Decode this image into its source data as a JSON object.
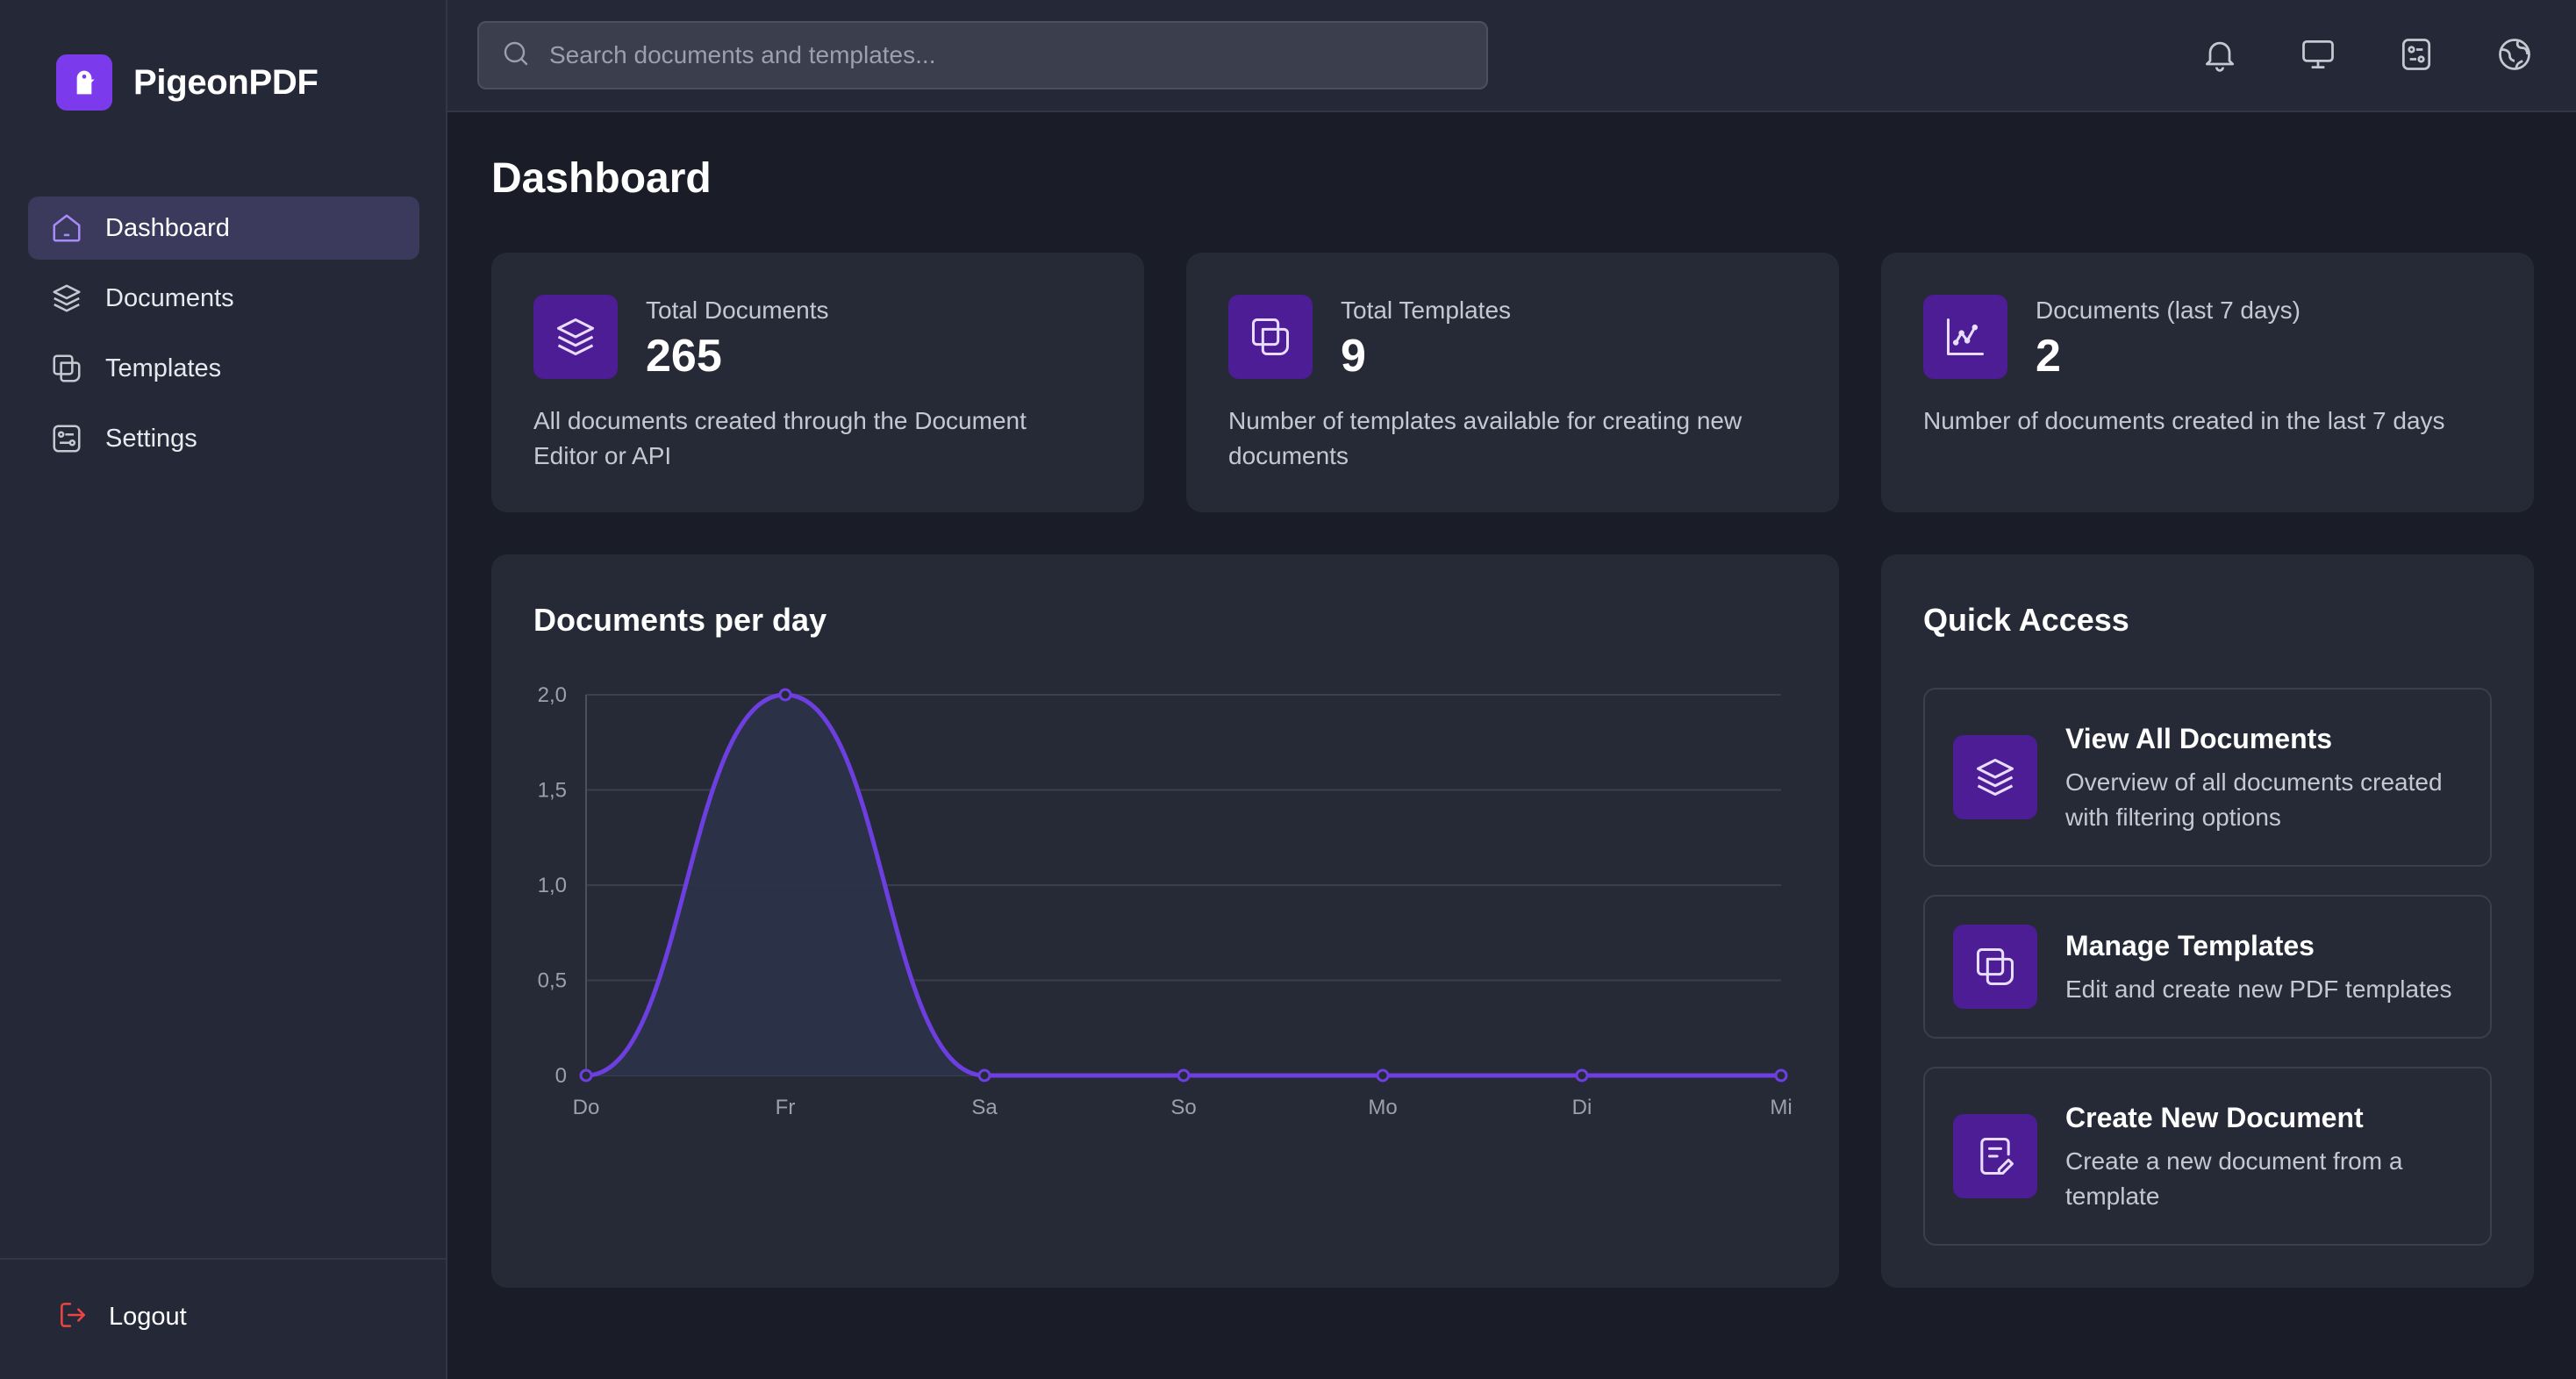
{
  "brand": {
    "name": "PigeonPDF",
    "accent": "#7c3aed"
  },
  "sidebar": {
    "items": [
      {
        "label": "Dashboard",
        "icon": "home-icon",
        "active": true
      },
      {
        "label": "Documents",
        "icon": "layers-icon",
        "active": false
      },
      {
        "label": "Templates",
        "icon": "copy-icon",
        "active": false
      },
      {
        "label": "Settings",
        "icon": "settings-sliders-icon",
        "active": false
      }
    ],
    "logout_label": "Logout"
  },
  "search": {
    "placeholder": "Search documents and templates..."
  },
  "topbar": {
    "icons": [
      "bell-icon",
      "monitor-icon",
      "toggle-settings-icon",
      "globe-icon"
    ]
  },
  "page": {
    "title": "Dashboard"
  },
  "stats": [
    {
      "label": "Total Documents",
      "value": "265",
      "description": "All documents created through the Document Editor or API",
      "icon": "layers-icon"
    },
    {
      "label": "Total Templates",
      "value": "9",
      "description": "Number of templates available for creating new documents",
      "icon": "copy-icon"
    },
    {
      "label": "Documents (last 7 days)",
      "value": "2",
      "description": "Number of documents created in the last 7 days",
      "icon": "chart-line-icon"
    }
  ],
  "chart": {
    "title": "Documents per day"
  },
  "chart_data": {
    "type": "area",
    "categories": [
      "Do",
      "Fr",
      "Sa",
      "So",
      "Mo",
      "Di",
      "Mi"
    ],
    "values": [
      0,
      2,
      0,
      0,
      0,
      0,
      0
    ],
    "ylim": [
      0,
      2
    ],
    "yticks": [
      "0",
      "0,5",
      "1,0",
      "1,5",
      "2,0"
    ],
    "ytick_values": [
      0,
      0.5,
      1,
      1.5,
      2
    ],
    "grid": true,
    "line_color": "#6d3fe0",
    "fill_color": "#2b3247"
  },
  "quick_access": {
    "title": "Quick Access",
    "items": [
      {
        "title": "View All Documents",
        "description": "Overview of all documents created with filtering options",
        "icon": "layers-icon"
      },
      {
        "title": "Manage Templates",
        "description": "Edit and create new PDF templates",
        "icon": "copy-icon"
      },
      {
        "title": "Create New Document",
        "description": "Create a new document from a template",
        "icon": "file-edit-icon"
      }
    ]
  }
}
